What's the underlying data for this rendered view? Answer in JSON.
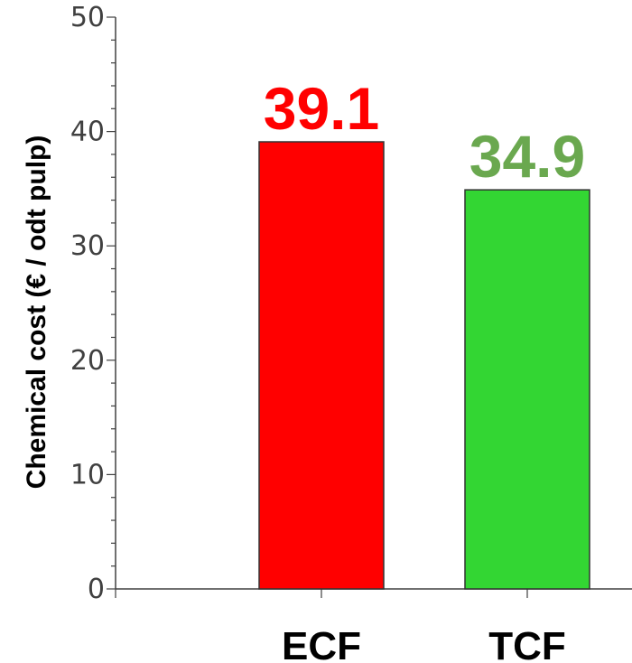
{
  "chart_data": {
    "type": "bar",
    "categories": [
      "ECF",
      "TCF"
    ],
    "values": [
      39.1,
      34.9
    ],
    "data_labels": [
      "39.1",
      "34.9"
    ],
    "bar_colors": [
      "#ff0000",
      "#33d633"
    ],
    "label_colors": [
      "#ff0000",
      "#6aa84f"
    ],
    "ylabel": "Chemical cost (€ / odt pulp)",
    "xlabel": "",
    "ylim": [
      0,
      50
    ],
    "yticks": [
      "0",
      "10",
      "20",
      "30",
      "40",
      "50"
    ],
    "ytick_values": [
      0,
      10,
      20,
      30,
      40,
      50
    ],
    "grid": false,
    "legend": "none"
  }
}
